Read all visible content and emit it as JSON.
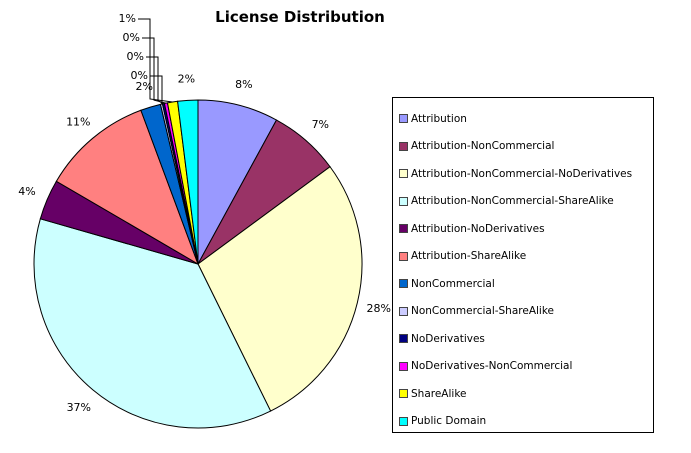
{
  "chart_data": {
    "type": "pie",
    "title": "License Distribution",
    "legend_position": "right",
    "slices": [
      {
        "label": "Attribution",
        "value": 8,
        "display": "8%",
        "color": "#9999ff"
      },
      {
        "label": "Attribution-NonCommercial",
        "value": 7,
        "display": "7%",
        "color": "#993366"
      },
      {
        "label": "Attribution-NonCommercial-NoDerivatives",
        "value": 28,
        "display": "28%",
        "color": "#ffffcc"
      },
      {
        "label": "Attribution-NonCommercial-ShareAlike",
        "value": 37,
        "display": "37%",
        "color": "#ccffff"
      },
      {
        "label": "Attribution-NoDerivatives",
        "value": 4,
        "display": "4%",
        "color": "#660066"
      },
      {
        "label": "Attribution-ShareAlike",
        "value": 11,
        "display": "11%",
        "color": "#ff8080"
      },
      {
        "label": "NonCommercial",
        "value": 2,
        "display": "2%",
        "color": "#0066cc"
      },
      {
        "label": "NonCommercial-ShareAlike",
        "value": 0.2,
        "display": "0%",
        "color": "#ccccff"
      },
      {
        "label": "NoDerivatives",
        "value": 0.2,
        "display": "0%",
        "color": "#000080"
      },
      {
        "label": "NoDerivatives-NonCommercial",
        "value": 0.3,
        "display": "0%",
        "color": "#ff00ff"
      },
      {
        "label": "ShareAlike",
        "value": 1,
        "display": "1%",
        "color": "#ffff00"
      },
      {
        "label": "Public Domain",
        "value": 2,
        "display": "2%",
        "color": "#00ffff"
      }
    ]
  }
}
